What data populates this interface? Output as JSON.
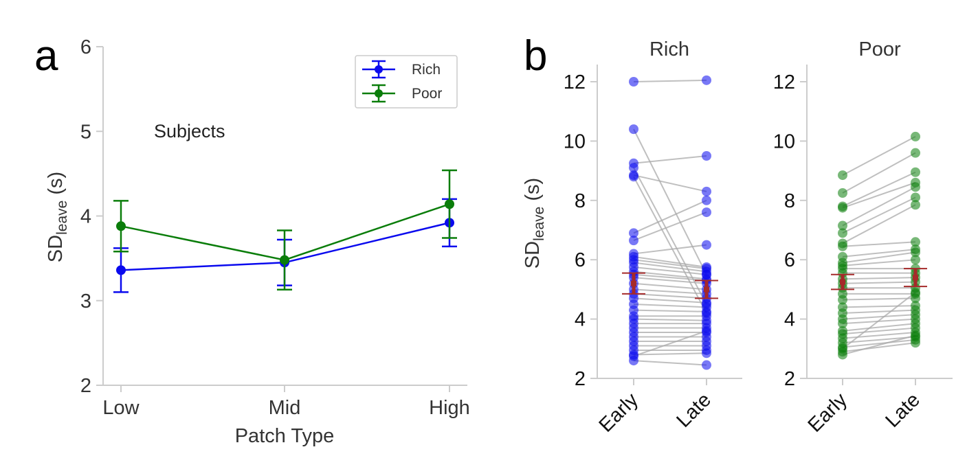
{
  "panel_labels": [
    "a",
    "b"
  ],
  "colors": {
    "rich": "#0a0aee",
    "poor": "#0a7d0a",
    "pair_line": "#aaaaaa",
    "mean": "#a52a2a",
    "axis": "#cccccc"
  },
  "chart_data": [
    {
      "type": "line",
      "panel": "a",
      "annotation": "Subjects",
      "xlabel": "Patch Type",
      "ylabel": "SD",
      "ylabel_sub": "leave",
      "ylabel_unit": " (s)",
      "categories": [
        "Low",
        "Mid",
        "High"
      ],
      "ylim": [
        2,
        6
      ],
      "yticks": [
        "2",
        "3",
        "4",
        "5",
        "6"
      ],
      "legend": {
        "position": "top-right"
      },
      "series": [
        {
          "name": "Rich",
          "values": [
            3.36,
            3.45,
            3.92
          ],
          "err": [
            0.26,
            0.27,
            0.28
          ],
          "color": "#0a0aee"
        },
        {
          "name": "Poor",
          "values": [
            3.88,
            3.48,
            4.14
          ],
          "err": [
            0.3,
            0.35,
            0.4
          ],
          "color": "#0a7d0a"
        }
      ]
    },
    {
      "type": "scatter",
      "panel": "b",
      "title": "Rich",
      "ylabel": "SD",
      "ylabel_sub": "leave",
      "ylabel_unit": " (s)",
      "categories": [
        "Early",
        "Late"
      ],
      "ylim": [
        2,
        12.6
      ],
      "yticks": [
        "2",
        "4",
        "6",
        "8",
        "10",
        "12"
      ],
      "color": "#0a0aee",
      "mean": [
        5.2,
        5.0
      ],
      "sem": [
        0.35,
        0.3
      ],
      "pairs": [
        [
          12.0,
          12.05
        ],
        [
          10.4,
          5.5
        ],
        [
          9.25,
          9.5
        ],
        [
          9.1,
          4.5
        ],
        [
          8.85,
          8.3
        ],
        [
          8.8,
          4.2
        ],
        [
          6.9,
          8.0
        ],
        [
          6.65,
          7.6
        ],
        [
          6.2,
          6.5
        ],
        [
          6.1,
          5.75
        ],
        [
          6.0,
          5.7
        ],
        [
          5.9,
          5.6
        ],
        [
          5.75,
          5.5
        ],
        [
          5.6,
          5.35
        ],
        [
          5.5,
          5.3
        ],
        [
          5.4,
          5.2
        ],
        [
          5.2,
          5.0
        ],
        [
          5.0,
          4.85
        ],
        [
          4.85,
          4.7
        ],
        [
          4.7,
          4.55
        ],
        [
          4.5,
          4.4
        ],
        [
          4.3,
          4.25
        ],
        [
          4.1,
          4.1
        ],
        [
          4.0,
          3.95
        ],
        [
          3.85,
          3.85
        ],
        [
          3.7,
          3.7
        ],
        [
          3.55,
          3.55
        ],
        [
          3.4,
          3.4
        ],
        [
          3.25,
          3.25
        ],
        [
          3.1,
          3.1
        ],
        [
          2.95,
          2.95
        ],
        [
          2.8,
          2.85
        ],
        [
          2.6,
          2.45
        ],
        [
          2.75,
          3.6
        ]
      ]
    },
    {
      "type": "scatter",
      "panel": "b",
      "title": "Poor",
      "ylabel": "",
      "categories": [
        "Early",
        "Late"
      ],
      "ylim": [
        2,
        12.6
      ],
      "yticks": [
        "2",
        "4",
        "6",
        "8",
        "10",
        "12"
      ],
      "color": "#0a7d0a",
      "mean": [
        5.25,
        5.4
      ],
      "sem": [
        0.25,
        0.3
      ],
      "pairs": [
        [
          8.85,
          10.15
        ],
        [
          8.25,
          9.6
        ],
        [
          7.8,
          8.95
        ],
        [
          7.75,
          8.6
        ],
        [
          7.15,
          8.45
        ],
        [
          6.9,
          8.1
        ],
        [
          6.55,
          7.85
        ],
        [
          6.45,
          6.6
        ],
        [
          6.1,
          6.35
        ],
        [
          5.9,
          6.25
        ],
        [
          5.8,
          6.0
        ],
        [
          5.7,
          5.7
        ],
        [
          5.55,
          5.55
        ],
        [
          5.35,
          5.4
        ],
        [
          5.2,
          5.25
        ],
        [
          5.05,
          5.05
        ],
        [
          4.85,
          4.85
        ],
        [
          4.65,
          4.7
        ],
        [
          4.4,
          4.45
        ],
        [
          4.2,
          4.3
        ],
        [
          4.0,
          4.15
        ],
        [
          3.85,
          4.0
        ],
        [
          3.6,
          3.85
        ],
        [
          3.5,
          3.7
        ],
        [
          3.35,
          3.55
        ],
        [
          3.2,
          3.4
        ],
        [
          3.05,
          3.3
        ],
        [
          2.9,
          3.2
        ],
        [
          2.8,
          3.45
        ],
        [
          3.0,
          4.9
        ]
      ]
    }
  ]
}
